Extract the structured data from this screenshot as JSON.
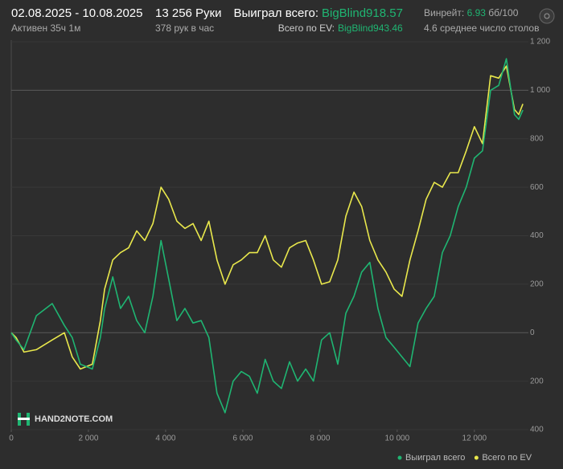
{
  "header": {
    "date_range": "02.08.2025 - 10.08.2025",
    "active": "Активен 35ч 1м",
    "hands": "13 256 Руки",
    "hands_per_hour": "378 рук в час",
    "won_label": "Выиграл всего:",
    "won_value": "BigBlind918.57",
    "ev_label": "Всего по EV:",
    "ev_value": "BigBlind943.46",
    "winrate_label": "Винрейт:",
    "winrate_value": "6.93",
    "winrate_unit": "бб/100",
    "tables": "4.6 среднее число столов",
    "watermark": "HAND2NOTE.COM"
  },
  "chart_data": {
    "type": "line",
    "grid": true,
    "x": [
      0,
      125,
      330,
      650,
      1060,
      1375,
      1580,
      1790,
      2100,
      2310,
      2420,
      2630,
      2830,
      3040,
      3250,
      3460,
      3670,
      3880,
      4080,
      4290,
      4500,
      4710,
      4920,
      5120,
      5330,
      5540,
      5750,
      5960,
      6170,
      6375,
      6580,
      6790,
      7000,
      7210,
      7420,
      7630,
      7830,
      8040,
      8250,
      8460,
      8670,
      8880,
      9080,
      9290,
      9500,
      9710,
      9920,
      10125,
      10330,
      10540,
      10750,
      10960,
      11170,
      11375,
      11580,
      11790,
      12000,
      12210,
      12420,
      12630,
      12830,
      13040,
      13150,
      13256
    ],
    "series": [
      {
        "name": "Выиграл всего",
        "color": "#1fb572",
        "values": [
          0,
          -30,
          -70,
          70,
          120,
          30,
          -20,
          -130,
          -150,
          -20,
          100,
          230,
          100,
          150,
          50,
          0,
          150,
          380,
          220,
          50,
          100,
          40,
          50,
          -20,
          -250,
          -330,
          -200,
          -160,
          -180,
          -250,
          -110,
          -200,
          -230,
          -120,
          -200,
          -150,
          -200,
          -30,
          0,
          -130,
          80,
          150,
          250,
          290,
          100,
          -20,
          -60,
          -100,
          -140,
          40,
          100,
          150,
          330,
          400,
          520,
          600,
          720,
          750,
          1000,
          1020,
          1130,
          900,
          880,
          918.57
        ]
      },
      {
        "name": "Всего по EV",
        "color": "#e9e84c",
        "values": [
          0,
          -20,
          -80,
          -70,
          -30,
          0,
          -100,
          -150,
          -130,
          50,
          180,
          300,
          330,
          350,
          420,
          380,
          450,
          600,
          550,
          460,
          430,
          450,
          380,
          460,
          300,
          200,
          280,
          300,
          330,
          330,
          400,
          300,
          270,
          350,
          370,
          380,
          300,
          200,
          210,
          300,
          480,
          580,
          520,
          380,
          300,
          250,
          180,
          150,
          300,
          420,
          550,
          620,
          600,
          660,
          660,
          750,
          850,
          780,
          1060,
          1050,
          1100,
          920,
          900,
          943.46
        ]
      }
    ],
    "xlim": [
      0,
      13400
    ],
    "xticks": [
      0,
      {
        "value": 2000,
        "label": "2 000"
      },
      {
        "value": 4000,
        "label": "4 000"
      },
      {
        "value": 6000,
        "label": "6 000"
      },
      {
        "value": 8000,
        "label": "8 000"
      },
      {
        "value": 10000,
        "label": "10 000"
      },
      {
        "value": 12000,
        "label": "12 000"
      }
    ],
    "ylim": [
      -400,
      1200
    ],
    "yticks": [
      {
        "value": -400,
        "label": "400"
      },
      {
        "value": -200,
        "label": "200"
      },
      0,
      200,
      400,
      600,
      800,
      {
        "value": 1000,
        "label": "1 000"
      },
      {
        "value": 1200,
        "label": "1 200"
      }
    ]
  }
}
